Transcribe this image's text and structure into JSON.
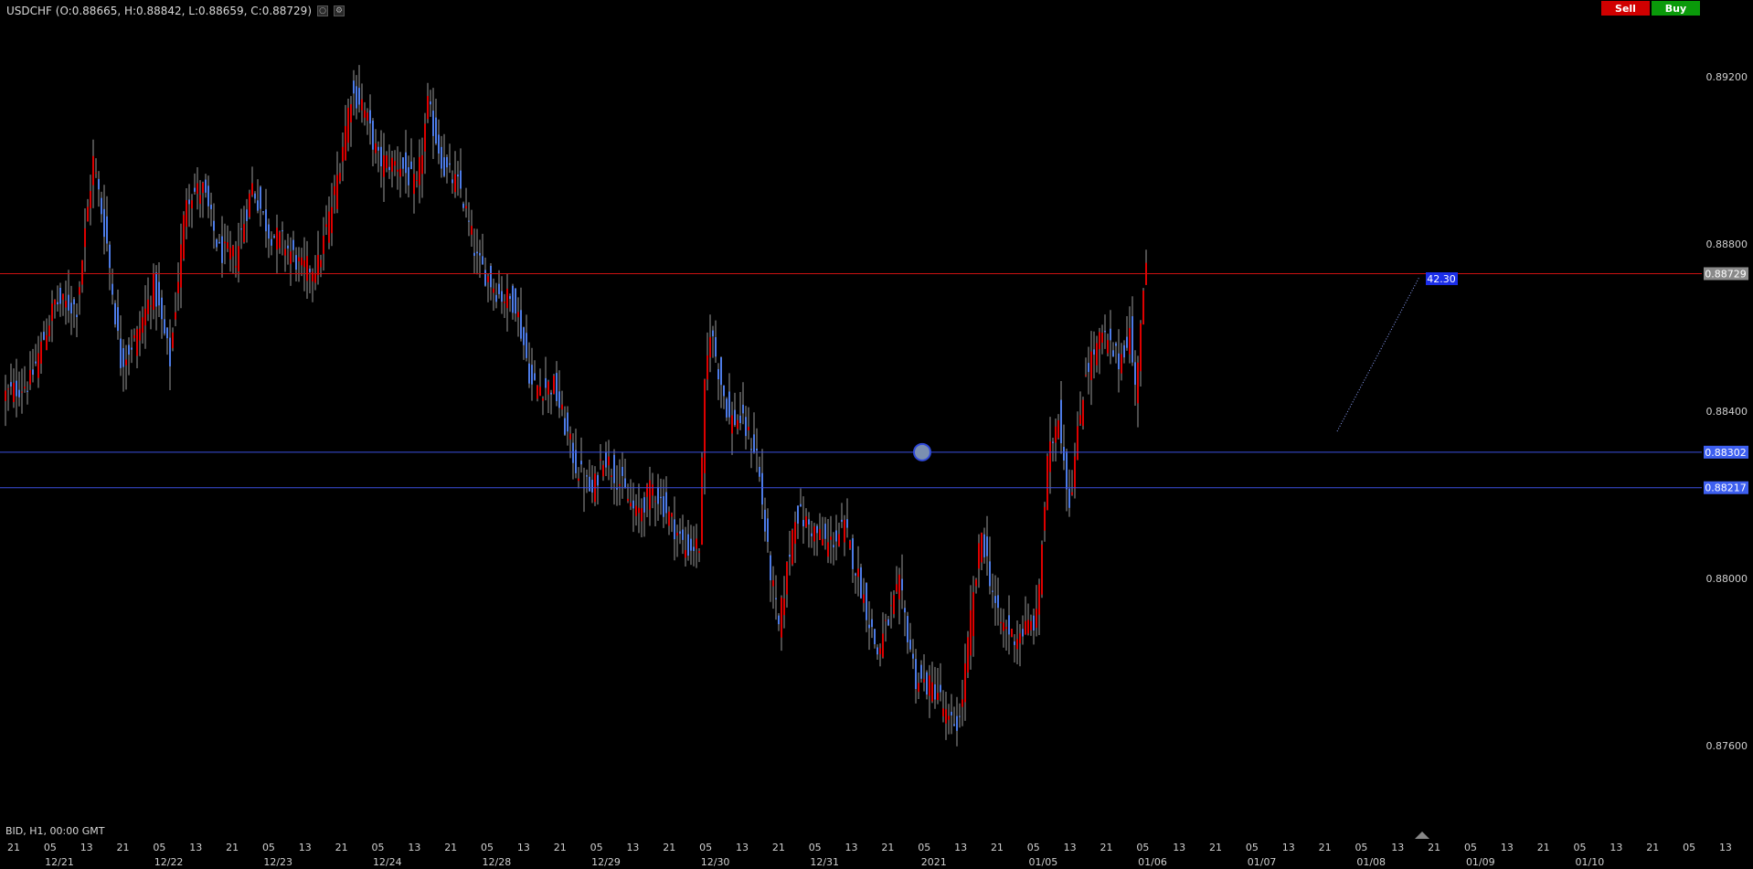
{
  "header": {
    "symbol_ohlc": "USDCHF (O:0.88665, H:0.88842, L:0.88659, C:0.88729)",
    "settings_icon": "gear-icon",
    "close_icon": "circle-icon"
  },
  "trade": {
    "sell_label": "Sell",
    "buy_label": "Buy",
    "sell_color": "#d00000",
    "buy_color": "#0a9a0a"
  },
  "footer": {
    "info": "BID, H1, 00:00 GMT"
  },
  "chart_data": {
    "type": "candlestick",
    "symbol": "USDCHF",
    "timeframe": "H1",
    "ylim": [
      0.8742,
      0.8938
    ],
    "yticks": [
      "0.89200",
      "0.88800",
      "0.88400",
      "0.88000",
      "0.87600"
    ],
    "hour_ticks": [
      "21",
      "05",
      "13",
      "21",
      "05",
      "13",
      "21",
      "05",
      "13",
      "21",
      "05",
      "13",
      "21",
      "05",
      "13",
      "21",
      "05",
      "13",
      "21",
      "05",
      "13",
      "21",
      "05",
      "13",
      "21",
      "05",
      "13",
      "21",
      "05",
      "13",
      "21",
      "05",
      "13",
      "21",
      "05",
      "13",
      "21",
      "05",
      "13",
      "21",
      "05",
      "13",
      "21",
      "05",
      "13",
      "21",
      "05",
      "13",
      "21",
      "05"
    ],
    "date_labels": [
      "12/21",
      "12/22",
      "12/23",
      "12/24",
      "12/28",
      "12/29",
      "12/30",
      "12/31",
      "2021",
      "01/05",
      "01/06",
      "01/07",
      "01/08",
      "01/09",
      "01/10"
    ],
    "up_color": "#dd0000",
    "down_color": "#4d7be6",
    "price_lines": [
      {
        "value": 0.88729,
        "label": "0.88729",
        "color": "#cc1111",
        "tag_bg": "#8a8a8a"
      },
      {
        "value": 0.88302,
        "label": "0.88302",
        "color": "#3a4fe0",
        "tag_bg": "#3d5ff0"
      },
      {
        "value": 0.88217,
        "label": "0.88217",
        "color": "#3a4fe0",
        "tag_bg": "#3d5ff0"
      }
    ],
    "measure_label": "42.30",
    "anchors": [
      [
        0,
        0.8844
      ],
      [
        9,
        0.8847
      ],
      [
        18,
        0.8866
      ],
      [
        26,
        0.8865
      ],
      [
        32,
        0.89
      ],
      [
        37,
        0.888
      ],
      [
        42,
        0.8852
      ],
      [
        48,
        0.8858
      ],
      [
        54,
        0.887
      ],
      [
        60,
        0.8852
      ],
      [
        66,
        0.8892
      ],
      [
        72,
        0.8893
      ],
      [
        78,
        0.8878
      ],
      [
        84,
        0.8877
      ],
      [
        90,
        0.8894
      ],
      [
        96,
        0.8883
      ],
      [
        102,
        0.888
      ],
      [
        108,
        0.8874
      ],
      [
        114,
        0.8875
      ],
      [
        120,
        0.8892
      ],
      [
        126,
        0.8916
      ],
      [
        130,
        0.8914
      ],
      [
        136,
        0.89
      ],
      [
        144,
        0.8899
      ],
      [
        150,
        0.8893
      ],
      [
        154,
        0.8913
      ],
      [
        160,
        0.8898
      ],
      [
        166,
        0.8893
      ],
      [
        172,
        0.8876
      ],
      [
        180,
        0.8868
      ],
      [
        186,
        0.8866
      ],
      [
        192,
        0.8846
      ],
      [
        200,
        0.8846
      ],
      [
        208,
        0.8827
      ],
      [
        214,
        0.882
      ],
      [
        218,
        0.883
      ],
      [
        224,
        0.8823
      ],
      [
        230,
        0.8815
      ],
      [
        236,
        0.8822
      ],
      [
        242,
        0.8815
      ],
      [
        248,
        0.8807
      ],
      [
        253,
        0.8808
      ],
      [
        255,
        0.8845
      ],
      [
        257,
        0.886
      ],
      [
        260,
        0.885
      ],
      [
        264,
        0.8838
      ],
      [
        268,
        0.8838
      ],
      [
        274,
        0.883
      ],
      [
        278,
        0.8806
      ],
      [
        282,
        0.8788
      ],
      [
        288,
        0.8816
      ],
      [
        294,
        0.8812
      ],
      [
        300,
        0.8808
      ],
      [
        306,
        0.8812
      ],
      [
        312,
        0.8798
      ],
      [
        318,
        0.8782
      ],
      [
        326,
        0.8798
      ],
      [
        332,
        0.8776
      ],
      [
        340,
        0.8773
      ],
      [
        344,
        0.8765
      ],
      [
        348,
        0.8766
      ],
      [
        352,
        0.879
      ],
      [
        356,
        0.8811
      ],
      [
        362,
        0.879
      ],
      [
        368,
        0.8786
      ],
      [
        376,
        0.879
      ],
      [
        380,
        0.8827
      ],
      [
        384,
        0.884
      ],
      [
        388,
        0.8818
      ],
      [
        394,
        0.885
      ],
      [
        400,
        0.8858
      ],
      [
        406,
        0.8852
      ],
      [
        410,
        0.8859
      ],
      [
        412,
        0.8845
      ],
      [
        414,
        0.8862
      ],
      [
        416,
        0.8873
      ]
    ]
  }
}
